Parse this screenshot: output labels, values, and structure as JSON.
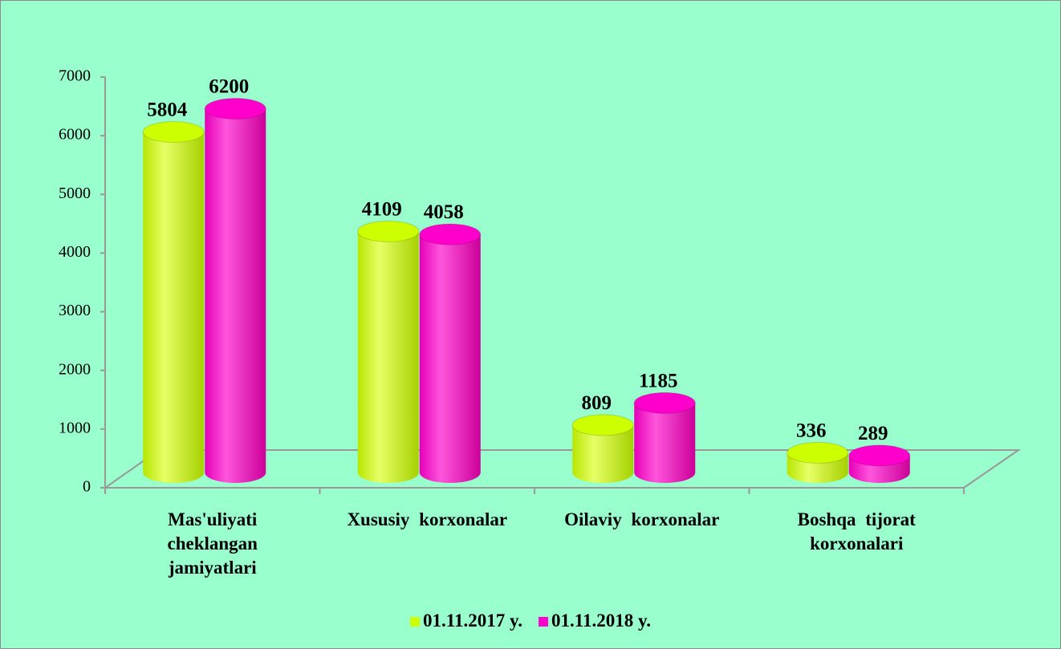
{
  "chart_data": {
    "type": "bar",
    "categories": [
      "Mas'uliyati cheklangan jamiyatlari",
      "Xususiy korxonalar",
      "Oilaviy korxonalar",
      "Boshqa tijorat korxonalari"
    ],
    "series": [
      {
        "name": "01.11.2017 y.",
        "color": "#ccff00",
        "values": [
          5804,
          4109,
          809,
          336
        ]
      },
      {
        "name": "01.11.2018 y.",
        "color": "#ff00cc",
        "values": [
          6200,
          4058,
          1185,
          289
        ]
      }
    ],
    "ylim": [
      0,
      7000
    ],
    "yticks": [
      0,
      1000,
      2000,
      3000,
      4000,
      5000,
      6000,
      7000
    ],
    "legend": "bottom"
  }
}
